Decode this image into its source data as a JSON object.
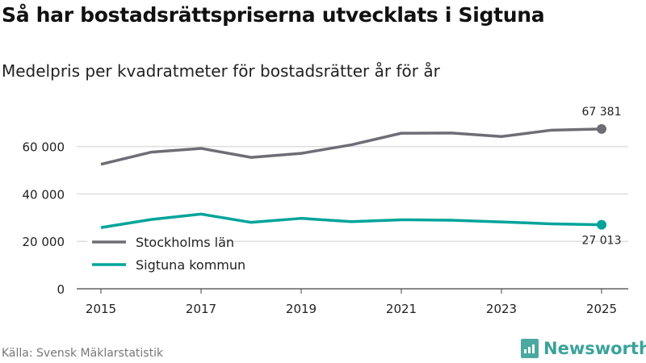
{
  "chart_data": {
    "type": "line",
    "title": "Så har bostadsrättspriserna utvecklats i Sigtuna",
    "subtitle": "Medelpris per kvadratmeter för bostadsrätter år för år",
    "x": [
      2015,
      2016,
      2017,
      2018,
      2019,
      2020,
      2021,
      2022,
      2023,
      2024,
      2025
    ],
    "xticks": [
      "2015",
      "2017",
      "2019",
      "2021",
      "2023",
      "2025"
    ],
    "yticks": [
      "0",
      "20 000",
      "40 000",
      "60 000"
    ],
    "ylim": [
      0,
      70000
    ],
    "grid": true,
    "legend": "bottom-left",
    "series": [
      {
        "name": "Stockholms län",
        "color": "#6e6d75",
        "values": [
          52500,
          57600,
          59200,
          55400,
          57100,
          60700,
          65600,
          65700,
          64200,
          66900,
          67381
        ],
        "end_label": "67 381"
      },
      {
        "name": "Sigtuna kommun",
        "color": "#00a49a",
        "values": [
          25800,
          29200,
          31500,
          28000,
          29700,
          28300,
          29100,
          28900,
          28200,
          27400,
          27013
        ],
        "end_label": "27 013"
      }
    ]
  },
  "source": "Källa: Svensk Mäklarstatistik",
  "brand": "Newsworthy"
}
